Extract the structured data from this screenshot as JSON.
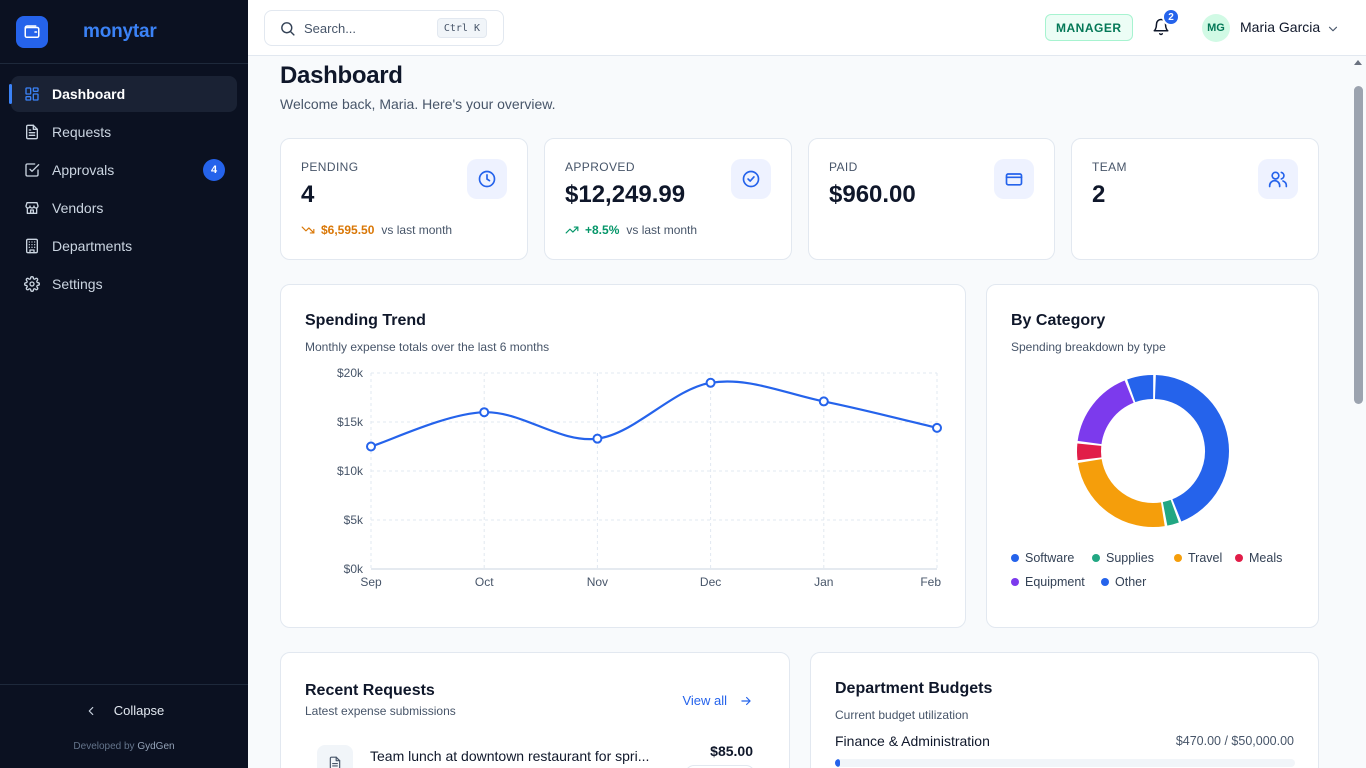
{
  "brand": {
    "name": "monytar",
    "icon": "wallet-icon"
  },
  "sidebar": {
    "items": [
      {
        "label": "Dashboard",
        "icon": "grid-icon",
        "active": true
      },
      {
        "label": "Requests",
        "icon": "document-icon"
      },
      {
        "label": "Approvals",
        "icon": "check-square-icon",
        "badge": "4"
      },
      {
        "label": "Vendors",
        "icon": "store-icon"
      },
      {
        "label": "Departments",
        "icon": "building-icon"
      },
      {
        "label": "Settings",
        "icon": "gear-icon"
      }
    ],
    "collapse_label": "Collapse",
    "developed_by": "Developed by",
    "developer": "GydGen"
  },
  "header": {
    "search_placeholder": "Search...",
    "search_shortcut": "Ctrl K",
    "role": "MANAGER",
    "notifications": "2",
    "user_initials": "MG",
    "user_name": "Maria Garcia"
  },
  "page": {
    "title": "Dashboard",
    "subtitle": "Welcome back, Maria. Here's your overview."
  },
  "stats": [
    {
      "label": "PENDING",
      "value": "4",
      "icon": "clock-icon",
      "trend_amount": "$6,595.50",
      "trend_text": "vs last month",
      "trend_dir": "down",
      "trend_color": "#d97706"
    },
    {
      "label": "APPROVED",
      "value": "$12,249.99",
      "icon": "check-circle-icon",
      "trend_amount": "+8.5%",
      "trend_text": "vs last month",
      "trend_dir": "up",
      "trend_color": "#059669"
    },
    {
      "label": "PAID",
      "value": "$960.00",
      "icon": "credit-card-icon"
    },
    {
      "label": "TEAM",
      "value": "2",
      "icon": "users-icon"
    }
  ],
  "trend_card": {
    "title": "Spending Trend",
    "subtitle": "Monthly expense totals over the last 6 months"
  },
  "category_card": {
    "title": "By Category",
    "subtitle": "Spending breakdown by type"
  },
  "chart_data": [
    {
      "type": "line",
      "categories": [
        "Sep",
        "Oct",
        "Nov",
        "Dec",
        "Jan",
        "Feb"
      ],
      "series": [
        {
          "values": [
            12500,
            16000,
            13300,
            19000,
            17100,
            14400
          ]
        }
      ],
      "y_ticks": [
        "$0k",
        "$5k",
        "$10k",
        "$15k",
        "$20k"
      ],
      "ylim": [
        0,
        20000
      ],
      "grid": true,
      "color": "#2563eb"
    },
    {
      "type": "pie",
      "categories": [
        "Software",
        "Supplies",
        "Travel",
        "Meals",
        "Equipment",
        "Other"
      ],
      "values": [
        43,
        3,
        25,
        4,
        17,
        6
      ],
      "colors": [
        "#2563eb",
        "#22a783",
        "#f59e0b",
        "#e11d48",
        "#7c3aed",
        "#2563eb"
      ],
      "legend": "bottom"
    }
  ],
  "recent": {
    "title": "Recent Requests",
    "subtitle": "Latest expense submissions",
    "view_all": "View all",
    "items": [
      {
        "title": "Team lunch at downtown restaurant for spri...",
        "amount": "$85.00"
      }
    ]
  },
  "budgets": {
    "title": "Department Budgets",
    "subtitle": "Current budget utilization",
    "items": [
      {
        "name": "Finance & Administration",
        "value": "$470.00 / $50,000.00",
        "fraction": 0.0094
      }
    ]
  }
}
